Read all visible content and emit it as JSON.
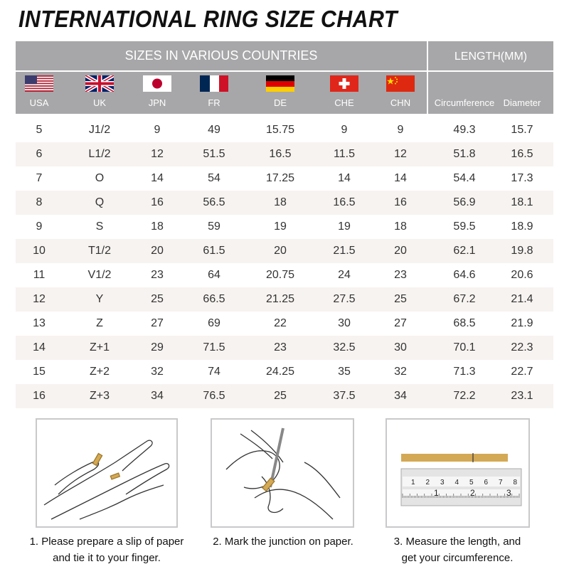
{
  "title": "INTERNATIONAL RING SIZE CHART",
  "header": {
    "sizes_label": "SIZES IN VARIOUS COUNTRIES",
    "length_label": "LENGTH(MM)",
    "countries": [
      {
        "code": "USA",
        "flag": "usa-flag-icon"
      },
      {
        "code": "UK",
        "flag": "uk-flag-icon"
      },
      {
        "code": "JPN",
        "flag": "japan-flag-icon"
      },
      {
        "code": "FR",
        "flag": "france-flag-icon"
      },
      {
        "code": "DE",
        "flag": "germany-flag-icon"
      },
      {
        "code": "CHE",
        "flag": "switzerland-flag-icon"
      },
      {
        "code": "CHN",
        "flag": "china-flag-icon"
      }
    ],
    "circumference": "Circumference",
    "diameter": "Diameter"
  },
  "rows": [
    [
      "5",
      "J1/2",
      "9",
      "49",
      "15.75",
      "9",
      "9",
      "49.3",
      "15.7"
    ],
    [
      "6",
      "L1/2",
      "12",
      "51.5",
      "16.5",
      "11.5",
      "12",
      "51.8",
      "16.5"
    ],
    [
      "7",
      "O",
      "14",
      "54",
      "17.25",
      "14",
      "14",
      "54.4",
      "17.3"
    ],
    [
      "8",
      "Q",
      "16",
      "56.5",
      "18",
      "16.5",
      "16",
      "56.9",
      "18.1"
    ],
    [
      "9",
      "S",
      "18",
      "59",
      "19",
      "19",
      "18",
      "59.5",
      "18.9"
    ],
    [
      "10",
      "T1/2",
      "20",
      "61.5",
      "20",
      "21.5",
      "20",
      "62.1",
      "19.8"
    ],
    [
      "11",
      "V1/2",
      "23",
      "64",
      "20.75",
      "24",
      "23",
      "64.6",
      "20.6"
    ],
    [
      "12",
      "Y",
      "25",
      "66.5",
      "21.25",
      "27.5",
      "25",
      "67.2",
      "21.4"
    ],
    [
      "13",
      "Z",
      "27",
      "69",
      "22",
      "30",
      "27",
      "68.5",
      "21.9"
    ],
    [
      "14",
      "Z+1",
      "29",
      "71.5",
      "23",
      "32.5",
      "30",
      "70.1",
      "22.3"
    ],
    [
      "15",
      "Z+2",
      "32",
      "74",
      "24.25",
      "35",
      "32",
      "71.3",
      "22.7"
    ],
    [
      "16",
      "Z+3",
      "34",
      "76.5",
      "25",
      "37.5",
      "34",
      "72.2",
      "23.1"
    ]
  ],
  "colors": {
    "header_bg": "#a7a7a9",
    "alt_row": "#f7f3f1",
    "paper_strip": "#d4a955"
  },
  "steps": [
    {
      "line1": "1. Please prepare a slip of paper",
      "line2": "and tie it to your finger."
    },
    {
      "line1": "2. Mark the junction on paper.",
      "line2": ""
    },
    {
      "line1": "3. Measure the length, and",
      "line2": "get your circumference."
    }
  ],
  "ruler": {
    "top_numbers": [
      "1",
      "2",
      "3",
      "4",
      "5",
      "6",
      "7",
      "8"
    ],
    "bottom_numbers": [
      "1",
      "2",
      "3"
    ]
  }
}
